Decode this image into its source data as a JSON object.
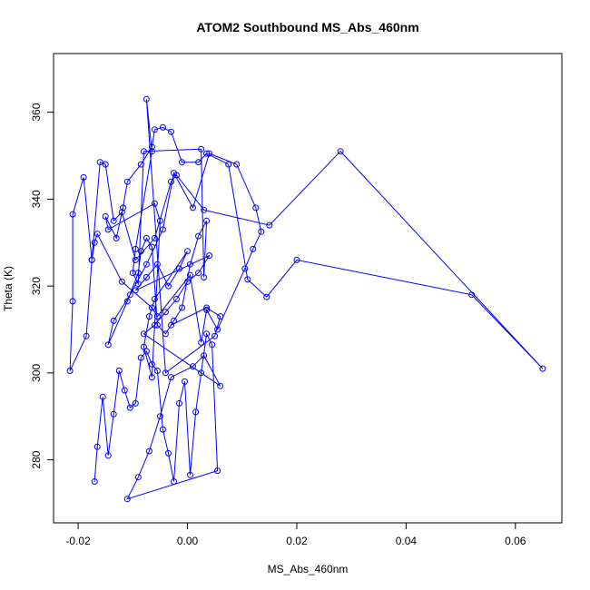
{
  "chart_data": {
    "type": "scatter",
    "title": "ATOM2 Southbound MS_Abs_460nm",
    "xlabel": "MS_Abs_460nm",
    "ylabel": "Theta (K)",
    "xlim": [
      -0.0245,
      0.0685
    ],
    "ylim": [
      265.5,
      373.5
    ],
    "xticks": [
      -0.02,
      0.0,
      0.02,
      0.04,
      0.06
    ],
    "xtick_labels": [
      "-0.02",
      "0.00",
      "0.02",
      "0.04",
      "0.06"
    ],
    "yticks": [
      280,
      300,
      320,
      340,
      360
    ],
    "ytick_labels": [
      "280",
      "300",
      "320",
      "340",
      "360"
    ],
    "grid": false,
    "color": "#0000ff",
    "x": [
      -0.017,
      -0.0165,
      -0.0155,
      -0.0145,
      -0.0135,
      -0.0125,
      -0.0115,
      -0.0105,
      -0.0095,
      -0.0085,
      -0.0075,
      -0.0065,
      -0.0055,
      -0.0045,
      -0.0035,
      -0.0025,
      -0.0015,
      -0.0005,
      0.0005,
      0.0015,
      0.0025,
      0.0035,
      0.0045,
      0.0055,
      -0.011,
      -0.009,
      -0.007,
      -0.005,
      -0.003,
      0.001,
      0.003,
      0.006,
      -0.008,
      -0.006,
      -0.004,
      -0.002,
      0.0,
      0.002,
      0.004,
      -0.0095,
      -0.0075,
      -0.0055,
      -0.0035,
      -0.0015,
      0.0,
      -0.006,
      -0.007,
      -0.008,
      -0.0065,
      -0.005,
      -0.006,
      -0.0145,
      -0.015,
      -0.013,
      -0.0118,
      -0.011,
      -0.0085,
      -0.0065,
      -0.006,
      -0.0045,
      -0.003,
      -0.001,
      0.002,
      0.0035,
      0.0075,
      0.011,
      0.0145,
      0.02,
      0.052,
      0.065,
      0.028,
      0.015,
      0.003,
      -0.002,
      -0.003,
      -0.006,
      -0.0095,
      -0.012,
      -0.0135,
      -0.015,
      -0.016,
      -0.0175,
      -0.019,
      -0.021,
      -0.021,
      -0.0215,
      -0.0185,
      -0.0175,
      -0.017,
      -0.0165,
      -0.012,
      -0.0065,
      -0.0055,
      0.0005,
      0.0025,
      0.0035,
      0.0055,
      0.0105,
      0.012,
      0.0135,
      0.0125,
      0.009,
      0.004,
      0.001,
      -0.0025,
      -0.0045,
      -0.0075,
      -0.0105,
      -0.0135,
      -0.0145,
      -0.011,
      -0.009,
      -0.0085,
      -0.0075,
      -0.0065,
      -0.0055,
      -0.004,
      -0.0025,
      -0.001,
      0.0005,
      0.002,
      0.0035,
      0.003,
      0.0025,
      -0.008,
      -0.009,
      -0.01,
      -0.0095,
      -0.0065,
      -0.0075,
      -0.004,
      0.005,
      0.006,
      0.0035,
      -0.003
    ],
    "y": [
      275,
      283,
      294.5,
      281,
      290.5,
      300.5,
      296,
      292,
      293,
      303.5,
      305,
      302,
      300.5,
      287,
      281.5,
      275,
      293,
      298,
      276.5,
      291,
      300,
      309,
      306.5,
      277.5,
      271,
      276,
      282,
      290,
      299,
      301.5,
      304,
      297,
      309,
      311,
      314,
      317,
      321,
      323,
      327,
      319,
      322,
      325,
      320,
      324,
      328,
      317,
      313,
      306,
      299,
      335,
      339,
      333,
      336,
      331,
      338,
      344,
      348,
      352,
      356,
      356.5,
      355.5,
      348.5,
      348.5,
      350.5,
      348,
      321.5,
      317.5,
      326,
      318,
      301,
      351,
      334,
      337.5,
      345.5,
      344,
      331,
      326,
      337,
      335,
      348,
      348.5,
      326,
      345,
      336.5,
      316.5,
      300.5,
      308.5,
      326,
      330,
      332,
      321,
      315,
      313,
      322.5,
      307,
      314.5,
      310,
      324,
      328.5,
      332.5,
      338,
      348,
      350.5,
      338,
      346,
      333,
      325,
      318,
      312,
      306.5,
      316.5,
      323,
      328,
      331,
      329,
      311,
      309,
      312,
      315,
      325,
      331.5,
      335,
      322,
      351.5,
      351,
      320.5,
      323,
      328.5,
      351,
      363,
      300,
      308.5,
      313,
      315,
      311
    ]
  }
}
